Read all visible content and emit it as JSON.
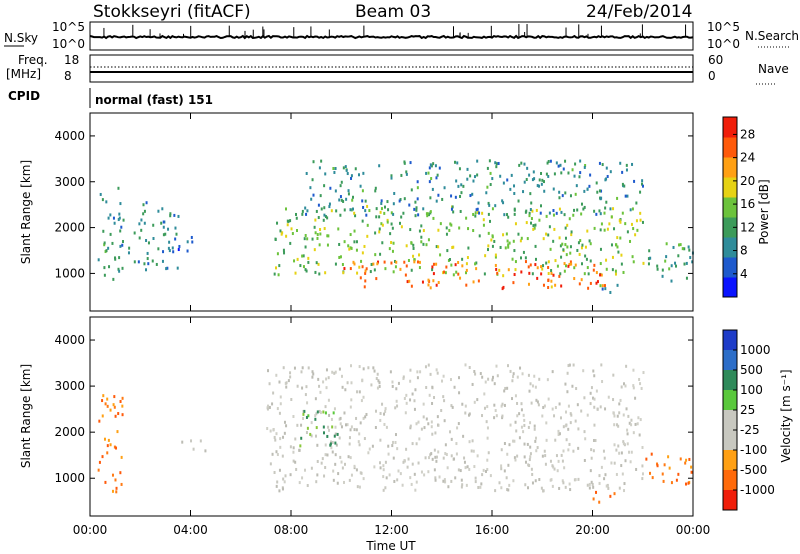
{
  "header": {
    "station": "Stokkseyri (fitACF)",
    "beam": "Beam 03",
    "date": "24/Feb/2014"
  },
  "panels": {
    "nsky_label": "N.Sky",
    "nsky_ticks": [
      "10^5",
      "10^0"
    ],
    "nsearch_ticks": [
      "10^5",
      "10^0"
    ],
    "nsearch_label": "N.Search",
    "freq_label_1": "Freq.",
    "freq_label_2": "[MHz]",
    "freq_ticks": [
      "18",
      "8"
    ],
    "nave_ticks": [
      "60",
      "0"
    ],
    "nave_label": "Nave",
    "cpid_label": "CPID",
    "cpid_text": "normal (fast) 151"
  },
  "chart_data": [
    {
      "type": "heatmap",
      "name": "power",
      "xlabel": "Time UT",
      "ylabel": "Slant Range [km]",
      "x_ticks": [
        "00:00",
        "04:00",
        "08:00",
        "12:00",
        "16:00",
        "20:00",
        "00:00"
      ],
      "xlim_hours": [
        0,
        24
      ],
      "y_ticks": [
        1000,
        2000,
        3000,
        4000
      ],
      "ylim": [
        180,
        4500
      ],
      "colorbar": {
        "label": "Power [dB]",
        "ticks": [
          4,
          8,
          12,
          16,
          20,
          24,
          28
        ],
        "range": [
          0,
          31
        ],
        "colors": [
          "#0a14ff",
          "#1e5acd",
          "#2f8c9a",
          "#3c9b5a",
          "#6cc33c",
          "#e6d214",
          "#ffa014",
          "#ff5a0a",
          "#f01e0a"
        ]
      },
      "regions": [
        {
          "t0": 0.3,
          "t1": 1.3,
          "r0": 700,
          "r1": 2900,
          "level": 10
        },
        {
          "t0": 1.5,
          "t1": 3.5,
          "r0": 1100,
          "r1": 2600,
          "level": 8
        },
        {
          "t0": 3.2,
          "t1": 4.5,
          "r0": 1500,
          "r1": 1850,
          "level": 6
        },
        {
          "t0": 7.3,
          "t1": 22.0,
          "r0": 1000,
          "r1": 2500,
          "level": 15
        },
        {
          "t0": 8.5,
          "t1": 22.0,
          "r0": 2300,
          "r1": 3500,
          "level": 9
        },
        {
          "t0": 10.0,
          "t1": 20.5,
          "r0": 700,
          "r1": 1300,
          "level": 26
        },
        {
          "t0": 22.0,
          "t1": 24.0,
          "r0": 800,
          "r1": 1700,
          "level": 12
        },
        {
          "t0": 20.0,
          "t1": 21.0,
          "r0": 500,
          "r1": 800,
          "level": 10
        }
      ]
    },
    {
      "type": "heatmap",
      "name": "velocity",
      "xlabel": "Time UT",
      "ylabel": "Slant Range [km]",
      "x_ticks": [
        "00:00",
        "04:00",
        "08:00",
        "12:00",
        "16:00",
        "20:00",
        "00:00"
      ],
      "xlim_hours": [
        0,
        24
      ],
      "y_ticks": [
        1000,
        2000,
        3000,
        4000
      ],
      "ylim": [
        180,
        4500
      ],
      "colorbar": {
        "label": "Velocity [m s⁻¹]",
        "ticks": [
          "1000",
          "500",
          "100",
          "25",
          "-25",
          "-100",
          "-500",
          "-1000"
        ],
        "colors": [
          "#1e3cc8",
          "#2d6ec8",
          "#2f8a5a",
          "#5ac83c",
          "#c8c8c0",
          "#c8c8c0",
          "#ffa014",
          "#ff6a0a",
          "#f01e0a"
        ]
      },
      "regions": [
        {
          "t0": 0.3,
          "t1": 1.3,
          "r0": 700,
          "r1": 2900,
          "color": "orange"
        },
        {
          "t0": 3.5,
          "t1": 4.6,
          "r0": 1600,
          "r1": 1850,
          "color": "gray"
        },
        {
          "t0": 7.0,
          "t1": 22.0,
          "r0": 750,
          "r1": 3500,
          "color": "gray"
        },
        {
          "t0": 8.3,
          "t1": 10.0,
          "r0": 1700,
          "r1": 2500,
          "color": "green"
        },
        {
          "t0": 22.0,
          "t1": 24.0,
          "r0": 900,
          "r1": 1600,
          "color": "orange"
        },
        {
          "t0": 20.0,
          "t1": 21.0,
          "r0": 500,
          "r1": 800,
          "color": "orange"
        }
      ]
    }
  ]
}
